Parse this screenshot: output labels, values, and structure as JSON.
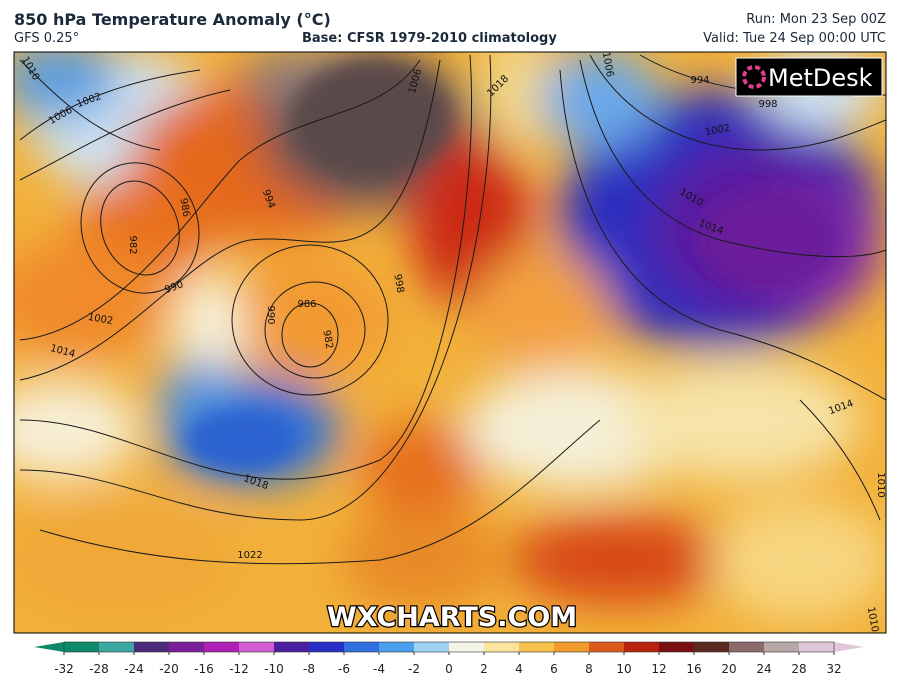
{
  "header": {
    "title": "850 hPa Temperature Anomaly (°C)",
    "model": "GFS 0.25°",
    "base": "Base: CFSR 1979-2010 climatology",
    "run": "Run: Mon 23 Sep 00Z",
    "valid": "Valid: Tue 24 Sep 00:00 UTC"
  },
  "logo": "MetDesk",
  "watermark": "WXCHARTS.COM",
  "isobar_labels": [
    "1010",
    "1006",
    "1002",
    "986",
    "982",
    "990",
    "994",
    "1002",
    "1014",
    "990",
    "986",
    "982",
    "998",
    "1006",
    "1018",
    "1006",
    "994",
    "998",
    "1002",
    "1010",
    "1014",
    "1018",
    "1022",
    "1014",
    "1010",
    "1010"
  ],
  "colorbar": {
    "ticks": [
      -32,
      -28,
      -24,
      -20,
      -16,
      -12,
      -10,
      -8,
      -6,
      -4,
      -2,
      0,
      2,
      4,
      6,
      8,
      10,
      12,
      16,
      20,
      24,
      28,
      32
    ],
    "colors": [
      "#0e8a6a",
      "#3aa7a0",
      "#4b2a7a",
      "#7a1f9a",
      "#b01fb5",
      "#d35bd3",
      "#4a1fa0",
      "#2a2ec8",
      "#2f6fe0",
      "#4aa0ee",
      "#9ed2f4",
      "#f4f4e6",
      "#fbe59c",
      "#f6c24c",
      "#f09a2a",
      "#de5a1a",
      "#b8220e",
      "#7a0f12",
      "#5a2a20",
      "#8a6a6a",
      "#b8a8a8",
      "#e0c8d8"
    ]
  }
}
